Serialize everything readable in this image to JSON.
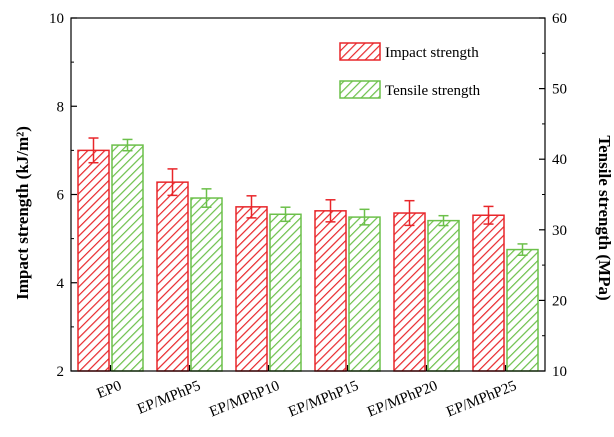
{
  "chart_data": {
    "type": "bar",
    "categories": [
      "EP0",
      "EP/MPhP5",
      "EP/MPhP10",
      "EP/MPhP15",
      "EP/MPhP20",
      "EP/MPhP25"
    ],
    "series": [
      {
        "name": "Impact strength",
        "axis": "left",
        "values": [
          7.0,
          6.28,
          5.72,
          5.63,
          5.58,
          5.53
        ],
        "errors": [
          0.28,
          0.3,
          0.25,
          0.25,
          0.28,
          0.2
        ],
        "color": "#e8262a",
        "pattern": "diagonal-hatch"
      },
      {
        "name": "Tensile strength",
        "axis": "right",
        "values": [
          42.0,
          34.5,
          32.2,
          31.8,
          31.3,
          27.2
        ],
        "errors": [
          0.8,
          1.3,
          1.0,
          1.1,
          0.7,
          0.8
        ],
        "color": "#6cc04a",
        "pattern": "diagonal-hatch"
      }
    ],
    "ylabel_left": "Impact strength (kJ/m²)",
    "ylabel_right": "Tensile strength (MPa)",
    "ylim_left": [
      2,
      10
    ],
    "ylim_right": [
      10,
      60
    ],
    "yticks_left": [
      "2",
      "4",
      "6",
      "8",
      "10"
    ],
    "yticks_right": [
      "10",
      "20",
      "30",
      "40",
      "50",
      "60"
    ],
    "legend_position": "top-right",
    "grid": false
  }
}
